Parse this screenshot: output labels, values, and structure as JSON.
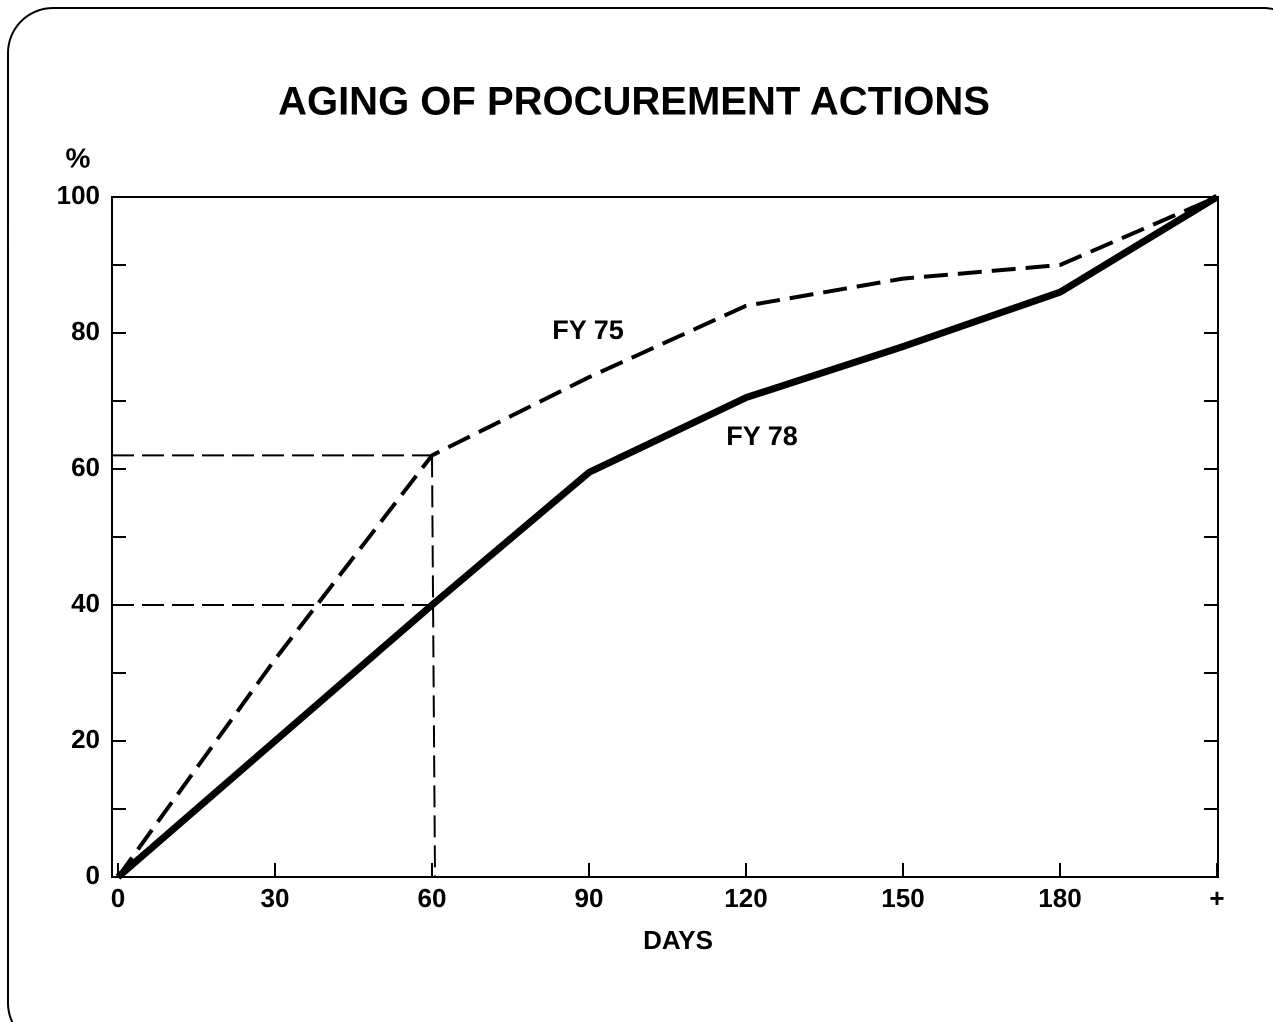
{
  "chart_data": {
    "type": "line",
    "title": "AGING OF PROCUREMENT ACTIONS",
    "y_label": "%",
    "x_label": "DAYS",
    "categories": [
      "0",
      "30",
      "60",
      "90",
      "120",
      "150",
      "180",
      "+"
    ],
    "series": [
      {
        "name": "FY 75",
        "color": "#000000",
        "line_style": "dashed",
        "values": [
          0,
          32,
          62,
          73.5,
          84,
          88,
          90,
          100
        ]
      },
      {
        "name": "FY 78",
        "color": "#000000",
        "line_style": "solid",
        "values": [
          0,
          20,
          40,
          59.5,
          70.5,
          78,
          86,
          100
        ]
      }
    ],
    "ylim": [
      0,
      100
    ],
    "yticks": [
      0,
      20,
      40,
      60,
      80,
      100
    ],
    "yminor_ticks": [
      10,
      30,
      50,
      70,
      90
    ],
    "grid": false
  }
}
